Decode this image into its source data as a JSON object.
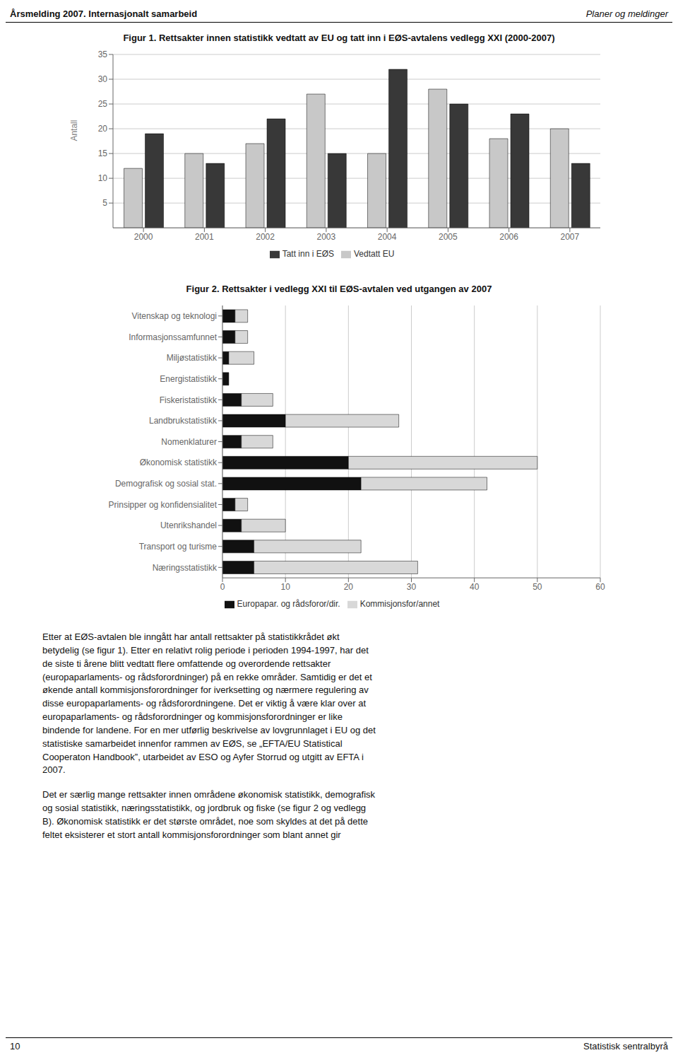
{
  "chart_data": [
    {
      "type": "bar",
      "title": "Figur 1. Rettsakter innen statistikk vedtatt av EU og tatt inn i EØS-avtalens vedlegg XXI (2000-2007)",
      "categories": [
        "2000",
        "2001",
        "2002",
        "2003",
        "2004",
        "2005",
        "2006",
        "2007"
      ],
      "series": [
        {
          "name": "Vedtatt EU",
          "color": "#c8c8c8",
          "values": [
            12,
            15,
            17,
            27,
            15,
            28,
            18,
            20
          ]
        },
        {
          "name": "Tatt inn i EØS",
          "color": "#383838",
          "values": [
            19,
            13,
            22,
            15,
            32,
            25,
            23,
            13
          ]
        }
      ],
      "ylabel": "Antall",
      "ylim": [
        0,
        35
      ],
      "yticks": [
        5,
        10,
        15,
        20,
        25,
        30,
        35
      ],
      "grid": true,
      "legend": "bottom"
    },
    {
      "type": "bar",
      "title": "Figur 2.  Rettsakter i vedlegg XXI til EØS-avtalen ved utgangen av 2007",
      "orientation": "horizontal",
      "stacked": true,
      "categories": [
        "Vitenskap og teknologi",
        "Informasjonssamfunnet",
        "Miljøstatistikk",
        "Energistatistikk",
        "Fiskeristatistikk",
        "Landbrukstatistikk",
        "Nomenklaturer",
        "Økonomisk statistikk",
        "Demografisk og sosial stat.",
        "Prinsipper og konfidensialitet",
        "Utenrikshandel",
        "Transport og turisme",
        "Næringsstatistikk"
      ],
      "series": [
        {
          "name": "Europapar. og rådsforor/dir.",
          "color": "#111111",
          "values": [
            2,
            2,
            1,
            1,
            3,
            10,
            3,
            20,
            22,
            2,
            3,
            5,
            5
          ]
        },
        {
          "name": "Kommisjonsfor/annet",
          "color": "#d8d8d8",
          "values": [
            2,
            2,
            4,
            0,
            5,
            18,
            5,
            30,
            20,
            2,
            7,
            17,
            26
          ]
        }
      ],
      "xlim": [
        0,
        60
      ],
      "xticks": [
        0,
        10,
        20,
        30,
        40,
        50,
        60
      ],
      "grid": true,
      "legend": "bottom"
    }
  ],
  "annotations": {
    "header": [
      "Årsmelding 2007. Internasjonalt samarbeid",
      "Planer og meldinger"
    ],
    "footer": [
      "10",
      "Statistisk sentralbyrå"
    ],
    "body": [
      [
        "Etter at EØS-avtalen ble inngått har antall rettsakter på statistikkrådet økt",
        "betydelig (se figur 1). Etter en relativt rolig periode i perioden 1994-1997, har det",
        "de siste ti årene blitt vedtatt flere omfattende og overordende rettsakter",
        "(europaparlaments- og rådsforordninger) på en rekke områder. Samtidig er det et",
        "økende antall kommisjonsforordninger for iverksetting og nærmere regulering av",
        "disse europaparlaments- og rådsforordningene. Det er viktig å være klar over at",
        "europaparlaments- og rådsforordninger og kommisjonsforordninger er like",
        "bindende for landene. For en mer utførlig beskrivelse av lovgrunnlaget i EU og det",
        "statistiske samarbeidet innenfor rammen av EØS, se „EFTA/EU Statistical",
        "Cooperaton Handbook”, utarbeidet av ESO og Ayfer Storrud og utgitt av EFTA i",
        "2007."
      ],
      [
        "Det er særlig mange rettsakter innen områdene økonomisk statistikk, demografisk",
        "og sosial statistikk, næringsstatistikk, og jordbruk og fiske (se figur 2 og vedlegg",
        "B). Økonomisk statistikk er det største området, noe som skyldes at det på dette",
        "feltet eksisterer et stort antall kommisjonsforordninger som blant annet gir"
      ]
    ]
  }
}
